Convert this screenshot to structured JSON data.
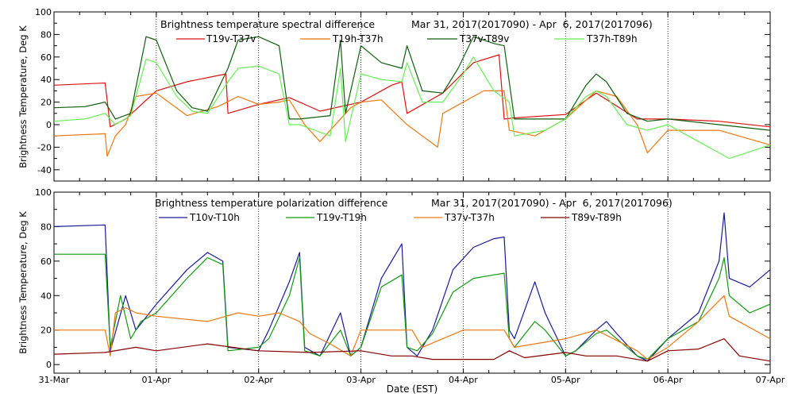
{
  "x_axis": {
    "label": "Date (EST)",
    "ticks": [
      "31-Mar",
      "01-Apr",
      "02-Apr",
      "03-Apr",
      "04-Apr",
      "05-Apr",
      "06-Apr",
      "07-Apr"
    ]
  },
  "colors": {
    "red": "#dd1111",
    "orange": "#ee7711",
    "darkgreen": "#0e5e0e",
    "lightgreen": "#66ee55",
    "navy": "#1a1a99",
    "green": "#119911",
    "maroon": "#880000"
  },
  "chart_data": [
    {
      "type": "line",
      "title": "Brightness temperature spectral difference",
      "date_range": "Mar 31, 2017(2017090) - Apr  6, 2017(2017096)",
      "xlabel": "",
      "ylabel": "Brightness Temperature, Deg K",
      "x_unit": "days since 31-Mar 00:00",
      "xlim": [
        0,
        7
      ],
      "ylim": [
        -50,
        100
      ],
      "yticks": [
        -40,
        -20,
        0,
        20,
        40,
        60,
        80,
        100
      ],
      "legend": "top",
      "series": [
        {
          "name": "T19v-T37v",
          "color": "#dd1111",
          "x": [
            0,
            0.5,
            0.55,
            0.7,
            1.0,
            1.3,
            1.68,
            1.7,
            2.0,
            2.3,
            2.6,
            3.0,
            3.3,
            3.4,
            3.45,
            3.8,
            4.1,
            4.35,
            4.4,
            4.5,
            5.0,
            5.3,
            5.7,
            6.0,
            6.5,
            7.0
          ],
          "y": [
            35,
            37,
            -2,
            5,
            30,
            38,
            45,
            10,
            18,
            24,
            12,
            20,
            35,
            38,
            10,
            28,
            55,
            62,
            5,
            6,
            9,
            28,
            5,
            5,
            3,
            -2
          ]
        },
        {
          "name": "T19h-T37h",
          "color": "#ee7711",
          "x": [
            0,
            0.5,
            0.52,
            0.6,
            0.7,
            0.8,
            1.0,
            1.3,
            1.6,
            1.8,
            2.0,
            2.2,
            2.3,
            2.45,
            2.6,
            2.9,
            3.0,
            3.2,
            3.45,
            3.6,
            3.75,
            3.8,
            4.2,
            4.4,
            4.45,
            4.7,
            5.0,
            5.3,
            5.5,
            5.7,
            5.8,
            6.0,
            6.5,
            7.0
          ],
          "y": [
            -10,
            -8,
            -28,
            -10,
            0,
            25,
            28,
            8,
            16,
            25,
            18,
            20,
            22,
            0,
            -15,
            15,
            20,
            22,
            0,
            -10,
            -20,
            10,
            30,
            30,
            -5,
            -10,
            5,
            30,
            25,
            0,
            -25,
            -5,
            -5,
            -18
          ]
        },
        {
          "name": "T37v-T89v",
          "color": "#0e5e0e",
          "x": [
            0,
            0.3,
            0.5,
            0.6,
            0.75,
            0.9,
            1.0,
            1.2,
            1.35,
            1.5,
            1.7,
            1.8,
            2.0,
            2.2,
            2.3,
            2.4,
            2.7,
            2.8,
            2.85,
            3.0,
            3.2,
            3.4,
            3.45,
            3.6,
            3.8,
            3.95,
            4.1,
            4.3,
            4.4,
            4.5,
            4.8,
            5.0,
            5.2,
            5.3,
            5.4,
            5.6,
            5.8,
            6.0,
            6.5,
            7.0
          ],
          "y": [
            15,
            16,
            20,
            5,
            10,
            78,
            75,
            30,
            15,
            12,
            50,
            75,
            78,
            70,
            5,
            5,
            8,
            75,
            10,
            70,
            55,
            50,
            70,
            30,
            28,
            50,
            78,
            72,
            70,
            5,
            5,
            5,
            35,
            45,
            38,
            10,
            3,
            5,
            0,
            -5
          ]
        },
        {
          "name": "T37h-T89h",
          "color": "#66ee55",
          "x": [
            0,
            0.3,
            0.5,
            0.6,
            0.75,
            0.9,
            1.0,
            1.2,
            1.35,
            1.5,
            1.7,
            1.8,
            2.0,
            2.2,
            2.3,
            2.4,
            2.7,
            2.8,
            2.85,
            3.0,
            3.2,
            3.4,
            3.45,
            3.6,
            3.8,
            4.0,
            4.1,
            4.3,
            4.45,
            4.5,
            4.8,
            5.0,
            5.2,
            5.3,
            5.4,
            5.6,
            5.8,
            6.0,
            6.3,
            6.6,
            7.0
          ],
          "y": [
            3,
            5,
            10,
            0,
            8,
            58,
            55,
            25,
            12,
            10,
            38,
            50,
            52,
            45,
            0,
            0,
            -10,
            50,
            -15,
            45,
            40,
            38,
            55,
            20,
            20,
            45,
            60,
            30,
            20,
            -10,
            -5,
            5,
            25,
            30,
            25,
            0,
            -5,
            0,
            -15,
            -30,
            -18
          ]
        }
      ]
    },
    {
      "type": "line",
      "title": "Brightness temperature polarization difference",
      "date_range": "Mar 31, 2017(2017090) - Apr  6, 2017(2017096)",
      "xlabel": "Date (EST)",
      "ylabel": "Brightness Temperature, Deg K",
      "x_unit": "days since 31-Mar 00:00",
      "xlim": [
        0,
        7
      ],
      "ylim": [
        -5,
        100
      ],
      "yticks": [
        0,
        20,
        40,
        60,
        80,
        100
      ],
      "legend": "top",
      "series": [
        {
          "name": "T10v-T10h",
          "color": "#1a1a99",
          "x": [
            0,
            0.5,
            0.55,
            0.7,
            0.8,
            1.0,
            1.3,
            1.5,
            1.65,
            1.7,
            2.0,
            2.1,
            2.3,
            2.4,
            2.45,
            2.6,
            2.8,
            2.9,
            3.0,
            3.2,
            3.4,
            3.45,
            3.55,
            3.7,
            3.9,
            4.1,
            4.3,
            4.4,
            4.45,
            4.5,
            4.7,
            4.8,
            5.0,
            5.1,
            5.3,
            5.4,
            5.5,
            5.7,
            5.8,
            6.0,
            6.3,
            6.5,
            6.55,
            6.6,
            6.8,
            7.0
          ],
          "y": [
            80,
            81,
            8,
            40,
            20,
            35,
            55,
            65,
            60,
            10,
            8,
            20,
            48,
            65,
            10,
            5,
            30,
            5,
            10,
            50,
            70,
            10,
            5,
            20,
            55,
            68,
            73,
            74,
            20,
            15,
            48,
            30,
            5,
            8,
            20,
            25,
            18,
            5,
            2,
            15,
            30,
            60,
            88,
            50,
            45,
            55
          ]
        },
        {
          "name": "T19v-T19h",
          "color": "#119911",
          "x": [
            0,
            0.5,
            0.55,
            0.65,
            0.75,
            0.85,
            1.0,
            1.3,
            1.5,
            1.65,
            1.7,
            2.0,
            2.1,
            2.3,
            2.4,
            2.45,
            2.6,
            2.8,
            2.9,
            3.0,
            3.2,
            3.4,
            3.45,
            3.55,
            3.7,
            3.9,
            4.1,
            4.3,
            4.4,
            4.45,
            4.5,
            4.7,
            4.8,
            5.0,
            5.1,
            5.3,
            5.4,
            5.5,
            5.7,
            5.8,
            6.0,
            6.3,
            6.5,
            6.55,
            6.6,
            6.8,
            7.0
          ],
          "y": [
            64,
            64,
            10,
            40,
            15,
            25,
            30,
            50,
            62,
            58,
            8,
            10,
            15,
            40,
            62,
            8,
            5,
            20,
            5,
            10,
            45,
            52,
            10,
            8,
            18,
            42,
            50,
            52,
            53,
            15,
            10,
            25,
            20,
            5,
            8,
            18,
            20,
            15,
            5,
            3,
            15,
            25,
            50,
            62,
            40,
            30,
            35
          ]
        },
        {
          "name": "T37v-T37h",
          "color": "#ee7711",
          "x": [
            0,
            0.5,
            0.55,
            0.6,
            0.7,
            0.8,
            1.0,
            1.5,
            1.8,
            2.0,
            2.2,
            2.4,
            2.5,
            2.7,
            2.9,
            3.0,
            3.5,
            3.6,
            4.0,
            4.4,
            4.5,
            5.0,
            5.3,
            5.7,
            5.8,
            6.0,
            6.3,
            6.55,
            6.6,
            7.0
          ],
          "y": [
            20,
            20,
            5,
            30,
            33,
            30,
            28,
            25,
            30,
            28,
            30,
            25,
            18,
            12,
            5,
            20,
            20,
            10,
            20,
            20,
            10,
            15,
            20,
            8,
            3,
            10,
            25,
            40,
            28,
            15
          ]
        },
        {
          "name": "T89v-T89h",
          "color": "#880000",
          "x": [
            0,
            0.5,
            0.8,
            1.0,
            1.5,
            2.0,
            2.5,
            3.0,
            3.3,
            3.5,
            3.7,
            4.0,
            4.3,
            4.45,
            4.6,
            5.0,
            5.2,
            5.5,
            5.8,
            6.0,
            6.3,
            6.55,
            6.7,
            7.0
          ],
          "y": [
            6,
            7,
            10,
            8,
            12,
            8,
            7,
            8,
            5,
            5,
            3,
            3,
            3,
            8,
            4,
            7,
            5,
            5,
            2,
            8,
            9,
            15,
            5,
            2
          ]
        }
      ]
    }
  ]
}
